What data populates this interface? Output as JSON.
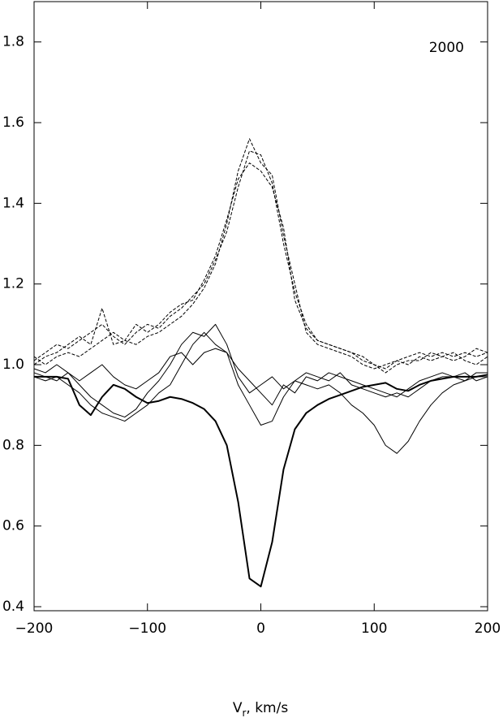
{
  "chart_data": {
    "type": "line",
    "annotation": "2000",
    "x_label": {
      "main": "V",
      "sub": "r",
      "rest": ", km/s"
    },
    "x": [
      -200,
      -190,
      -180,
      -170,
      -160,
      -150,
      -140,
      -130,
      -120,
      -110,
      -100,
      -90,
      -80,
      -70,
      -60,
      -50,
      -40,
      -30,
      -20,
      -10,
      0,
      10,
      20,
      30,
      40,
      50,
      60,
      70,
      80,
      90,
      100,
      110,
      120,
      130,
      140,
      150,
      160,
      170,
      180,
      190,
      200
    ],
    "xlim": [
      -200,
      200
    ],
    "xticks": [
      {
        "value": -200,
        "label": "−200"
      },
      {
        "value": -100,
        "label": "−100"
      },
      0,
      100,
      200
    ],
    "ylim": [
      0.39,
      1.9
    ],
    "yticks": [
      0.4,
      0.6,
      0.8,
      {
        "value": 1.0,
        "label": "1.0"
      },
      1.2,
      1.4,
      1.6,
      1.8
    ],
    "series": [
      {
        "color": "#000000",
        "width": 2,
        "dashed": false,
        "values": [
          0.97,
          0.97,
          0.97,
          0.965,
          0.9,
          0.875,
          0.92,
          0.95,
          0.94,
          0.92,
          0.905,
          0.91,
          0.92,
          0.915,
          0.905,
          0.89,
          0.86,
          0.8,
          0.66,
          0.47,
          0.45,
          0.56,
          0.74,
          0.84,
          0.88,
          0.9,
          0.915,
          0.925,
          0.935,
          0.945,
          0.95,
          0.955,
          0.94,
          0.935,
          0.95,
          0.96,
          0.965,
          0.97,
          0.97,
          0.97,
          0.975
        ]
      },
      {
        "color": "#000000",
        "width": 1,
        "dashed": false,
        "values": [
          0.97,
          0.96,
          0.97,
          0.95,
          0.93,
          0.9,
          0.88,
          0.87,
          0.86,
          0.88,
          0.9,
          0.93,
          0.95,
          1.0,
          1.05,
          1.08,
          1.05,
          1.03,
          0.95,
          0.9,
          0.85,
          0.86,
          0.92,
          0.96,
          0.95,
          0.94,
          0.95,
          0.93,
          0.9,
          0.88,
          0.85,
          0.8,
          0.78,
          0.81,
          0.86,
          0.9,
          0.93,
          0.95,
          0.96,
          0.97,
          0.97
        ]
      },
      {
        "color": "#000000",
        "width": 1,
        "dashed": false,
        "values": [
          0.99,
          0.98,
          1.0,
          0.98,
          0.95,
          0.92,
          0.9,
          0.88,
          0.87,
          0.89,
          0.93,
          0.96,
          1.0,
          1.05,
          1.08,
          1.07,
          1.1,
          1.05,
          0.97,
          0.93,
          0.95,
          0.97,
          0.94,
          0.96,
          0.98,
          0.97,
          0.96,
          0.98,
          0.95,
          0.94,
          0.93,
          0.92,
          0.93,
          0.92,
          0.94,
          0.96,
          0.97,
          0.97,
          0.96,
          0.98,
          0.98
        ]
      },
      {
        "color": "#000000",
        "width": 1,
        "dashed": false,
        "values": [
          0.98,
          0.97,
          0.96,
          0.98,
          0.96,
          0.98,
          1.0,
          0.97,
          0.95,
          0.94,
          0.96,
          0.98,
          1.02,
          1.03,
          1.0,
          1.03,
          1.04,
          1.03,
          0.99,
          0.96,
          0.93,
          0.9,
          0.95,
          0.93,
          0.97,
          0.96,
          0.98,
          0.97,
          0.96,
          0.95,
          0.94,
          0.93,
          0.92,
          0.94,
          0.96,
          0.97,
          0.98,
          0.97,
          0.98,
          0.96,
          0.97
        ]
      },
      {
        "color": "#000000",
        "width": 1,
        "dashed": true,
        "values": [
          1.01,
          1.03,
          1.05,
          1.04,
          1.06,
          1.08,
          1.1,
          1.07,
          1.05,
          1.08,
          1.1,
          1.09,
          1.12,
          1.14,
          1.17,
          1.2,
          1.26,
          1.33,
          1.44,
          1.53,
          1.52,
          1.45,
          1.3,
          1.18,
          1.1,
          1.06,
          1.05,
          1.04,
          1.03,
          1.02,
          1.0,
          0.99,
          1.01,
          1.02,
          1.03,
          1.02,
          1.03,
          1.02,
          1.03,
          1.02,
          1.03
        ]
      },
      {
        "color": "#000000",
        "width": 1,
        "dashed": true,
        "values": [
          1.0,
          1.02,
          1.03,
          1.05,
          1.07,
          1.05,
          1.14,
          1.05,
          1.06,
          1.05,
          1.07,
          1.08,
          1.1,
          1.12,
          1.15,
          1.19,
          1.25,
          1.35,
          1.48,
          1.56,
          1.5,
          1.47,
          1.32,
          1.2,
          1.08,
          1.05,
          1.04,
          1.03,
          1.02,
          1.0,
          0.99,
          1.0,
          1.01,
          1.0,
          1.02,
          1.01,
          1.02,
          1.01,
          1.02,
          1.04,
          1.03
        ]
      },
      {
        "color": "#000000",
        "width": 1,
        "dashed": true,
        "values": [
          1.02,
          1.0,
          1.02,
          1.03,
          1.02,
          1.04,
          1.06,
          1.08,
          1.06,
          1.1,
          1.08,
          1.1,
          1.13,
          1.15,
          1.16,
          1.21,
          1.27,
          1.36,
          1.46,
          1.5,
          1.48,
          1.44,
          1.34,
          1.16,
          1.09,
          1.06,
          1.05,
          1.04,
          1.03,
          1.01,
          1.0,
          0.98,
          1.0,
          1.01,
          1.01,
          1.03,
          1.02,
          1.03,
          1.01,
          1.0,
          1.02
        ]
      }
    ]
  }
}
